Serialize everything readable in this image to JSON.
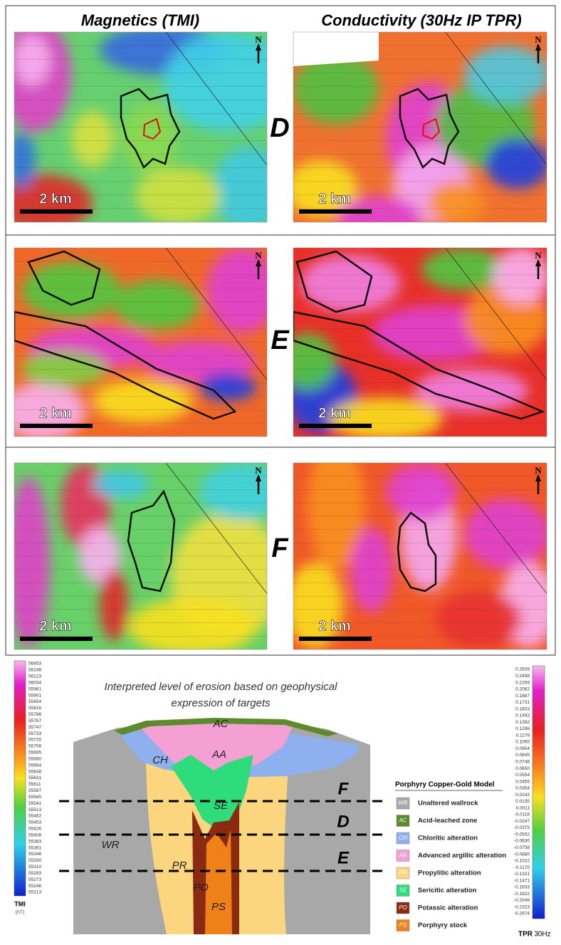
{
  "titles": [
    "Magnetics (TMI)",
    "Conductivity (30Hz IP TPR)"
  ],
  "rows": [
    {
      "label": "D"
    },
    {
      "label": "E"
    },
    {
      "label": "F"
    }
  ],
  "scale_label": "2 km",
  "north": "N",
  "section": {
    "title_lines": [
      "Interpreted level of erosion based on geophysical",
      "expression of targets"
    ]
  },
  "model_legend": {
    "title": "Porphyry Copper-Gold Model",
    "items": [
      {
        "code": "WR",
        "label": "Unaltered wallrock",
        "color": "#a8a8a8"
      },
      {
        "code": "AC",
        "label": "Acid-leached zone",
        "color": "#5d8a2a"
      },
      {
        "code": "CH",
        "label": "Chloritic alteration",
        "color": "#8fb0ee"
      },
      {
        "code": "AA",
        "label": "Advanced argillic alteration",
        "color": "#f4a0d2"
      },
      {
        "code": "PR",
        "label": "Propylitic alteration",
        "color": "#fcd67e"
      },
      {
        "code": "SE",
        "label": "Sericitic alteration",
        "color": "#2edc7c"
      },
      {
        "code": "PO",
        "label": "Potassic alteration",
        "color": "#8a2a10"
      },
      {
        "code": "PS",
        "label": "Porphyry stock",
        "color": "#f08018"
      }
    ]
  },
  "tmi_colorbar": {
    "title": "TMI",
    "unit": "(nT)",
    "labels": [
      56453,
      56248,
      56123,
      56034,
      55961,
      55901,
      55854,
      55816,
      55788,
      55767,
      55747,
      55733,
      55720,
      55708,
      55695,
      55680,
      55664,
      55648,
      55631,
      55611,
      55587,
      55565,
      55541,
      55513,
      55482,
      55453,
      55426,
      55408,
      55383,
      55361,
      55346,
      55330,
      55310,
      55293,
      55273,
      55246,
      55213
    ]
  },
  "tpr_colorbar": {
    "title": "TPR",
    "unit": "30Hz",
    "labels": [
      "0.2839",
      "0.2498",
      "0.2259",
      "0.2062",
      "0.1887",
      "0.1731",
      "0.1603",
      "0.1492",
      "0.1392",
      "0.1286",
      "0.1179",
      "0.1065",
      "0.0954",
      "0.0845",
      "0.0748",
      "0.0650",
      "0.0554",
      "0.0455",
      "0.0354",
      "0.0243",
      "0.0135",
      "0.0011",
      "-0.0116",
      "-0.0247",
      "-0.0375",
      "-0.0502",
      "-0.0630",
      "-0.0758",
      "-0.0880",
      "-0.1022",
      "-0.1170",
      "-0.1321",
      "-0.1471",
      "-0.1633",
      "-0.1822",
      "-0.2049",
      "-0.2323",
      "-0.2674"
    ]
  }
}
